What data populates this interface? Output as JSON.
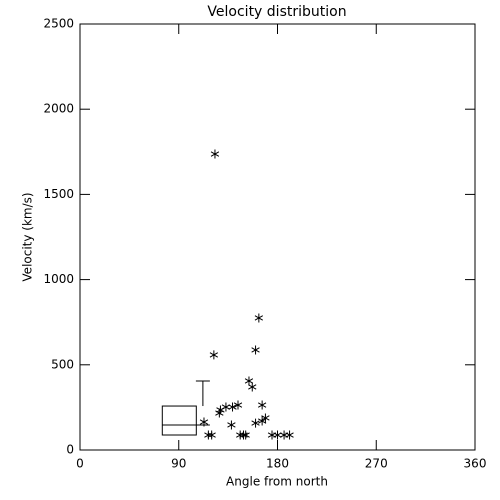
{
  "chart_data": {
    "type": "scatter",
    "title": "Velocity distribution",
    "x_label": "Angle from north",
    "y_label": "Velocity (km/s)",
    "xlim": [
      0,
      360
    ],
    "xticks": [
      0,
      90,
      180,
      270,
      360
    ],
    "ylim": [
      0,
      2500
    ],
    "yticks": [
      0,
      500,
      1000,
      1500,
      2000,
      2500
    ],
    "color": "#000000",
    "x": [
      123,
      122,
      163,
      160,
      154,
      157,
      166,
      127,
      128,
      133,
      139,
      144,
      113,
      138,
      117,
      120,
      146,
      149,
      151,
      160,
      166,
      169,
      175,
      180,
      186,
      191
    ],
    "y": [
      1737,
      558,
      775,
      587,
      405,
      370,
      264,
      217,
      235,
      252,
      252,
      264,
      164,
      147,
      88,
      88,
      88,
      88,
      88,
      158,
      170,
      188,
      88,
      88,
      88,
      88
    ],
    "box": {
      "x_left": 75,
      "x_right": 106,
      "whisker_x": 112,
      "q1": 88,
      "median": 147,
      "q3": 258,
      "whisker_high": 405
    }
  }
}
